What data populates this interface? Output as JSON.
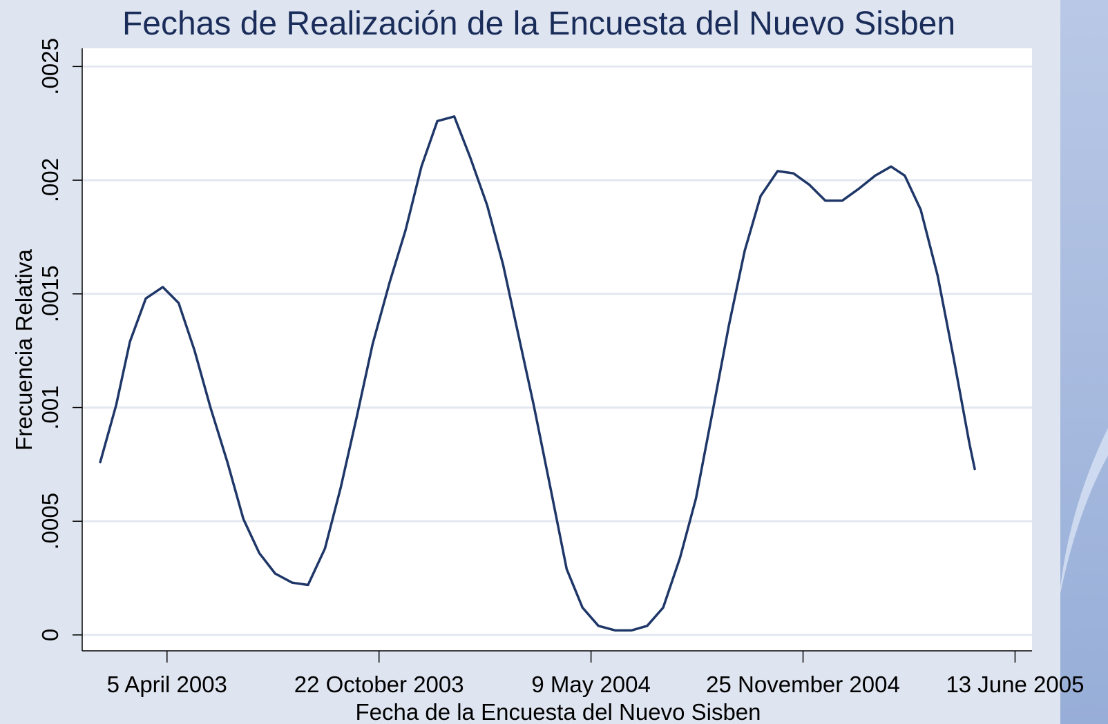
{
  "chart_data": {
    "type": "line",
    "title": "Fechas de Realización de la Encuesta del Nuevo Sisben",
    "xlabel": "Fecha de la Encuesta del Nuevo Sisben",
    "ylabel": "Frecuencia Relativa",
    "x": [
      "2003-02-01",
      "2003-02-16",
      "2003-03-01",
      "2003-03-16",
      "2003-04-01",
      "2003-04-16",
      "2003-05-01",
      "2003-05-16",
      "2003-06-01",
      "2003-06-16",
      "2003-07-01",
      "2003-07-16",
      "2003-08-01",
      "2003-08-16",
      "2003-09-01",
      "2003-09-16",
      "2003-10-01",
      "2003-10-16",
      "2003-11-01",
      "2003-11-16",
      "2003-12-01",
      "2003-12-16",
      "2004-01-01",
      "2004-01-16",
      "2004-02-01",
      "2004-02-16",
      "2004-03-01",
      "2004-03-16",
      "2004-04-01",
      "2004-04-16",
      "2004-05-01",
      "2004-05-16",
      "2004-06-01",
      "2004-06-16",
      "2004-07-01",
      "2004-07-16",
      "2004-08-01",
      "2004-08-16",
      "2004-09-01",
      "2004-09-16",
      "2004-10-01",
      "2004-10-16",
      "2004-11-01",
      "2004-11-16",
      "2004-12-01",
      "2004-12-16",
      "2005-01-01",
      "2005-01-16",
      "2005-02-01",
      "2005-02-16",
      "2005-03-01",
      "2005-03-16",
      "2005-04-01",
      "2005-04-16",
      "2005-05-01",
      "2005-05-06"
    ],
    "series": [
      {
        "name": "Frecuencia Relativa",
        "color": "#1f3768",
        "values": [
          0.00076,
          0.00101,
          0.00129,
          0.00148,
          0.00153,
          0.00146,
          0.00125,
          0.001,
          0.00076,
          0.00051,
          0.00036,
          0.00027,
          0.00023,
          0.00022,
          0.00038,
          0.00065,
          0.00096,
          0.00128,
          0.00155,
          0.00178,
          0.00206,
          0.00226,
          0.00228,
          0.0021,
          0.00189,
          0.00163,
          0.00133,
          0.00101,
          0.00064,
          0.00029,
          0.00012,
          4e-05,
          2e-05,
          2e-05,
          4e-05,
          0.00012,
          0.00034,
          0.0006,
          0.00099,
          0.00136,
          0.00169,
          0.00193,
          0.00204,
          0.00203,
          0.00198,
          0.00191,
          0.00191,
          0.00196,
          0.00202,
          0.00206,
          0.00202,
          0.00187,
          0.00158,
          0.00122,
          0.00084,
          0.00073
        ]
      }
    ],
    "xlim": [
      "2003-01-15",
      "2005-06-29"
    ],
    "xticks": [
      {
        "value": "2003-04-05",
        "label": "5 April 2003"
      },
      {
        "value": "2003-10-22",
        "label": "22 October 2003"
      },
      {
        "value": "2004-05-09",
        "label": "9 May 2004"
      },
      {
        "value": "2004-11-25",
        "label": "25 November 2004"
      },
      {
        "value": "2005-06-13",
        "label": "13 June 2005"
      }
    ],
    "ylim": [
      -7e-05,
      0.00258
    ],
    "yticks": [
      0,
      {
        "value": 0.0005,
        "label": ".0005"
      },
      {
        "value": 0.001,
        "label": ".001"
      },
      {
        "value": 0.0015,
        "label": ".0015"
      },
      {
        "value": 0.002,
        "label": ".002"
      },
      {
        "value": 0.0025,
        "label": ".0025"
      }
    ],
    "grid": true
  }
}
